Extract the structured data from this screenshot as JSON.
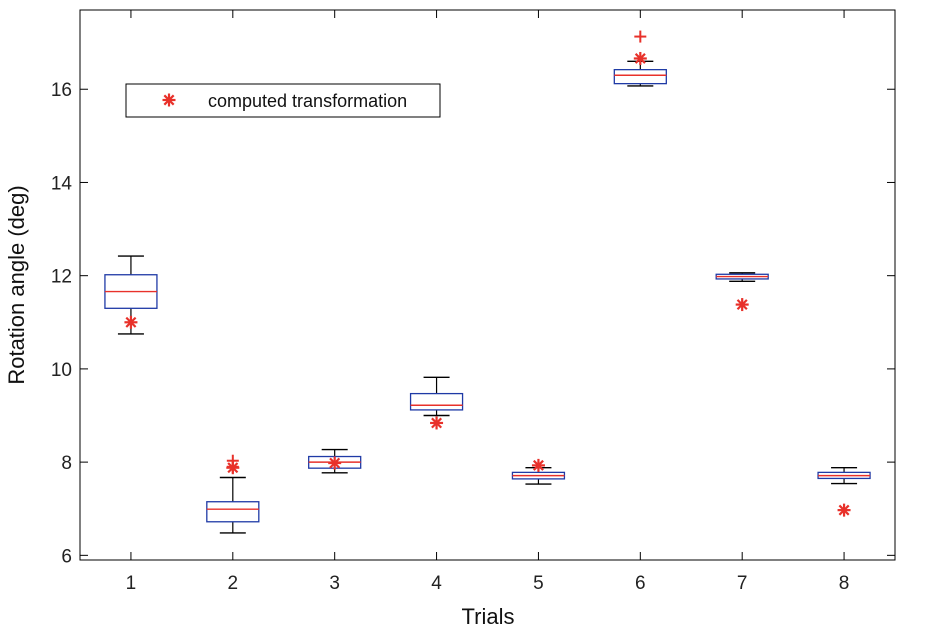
{
  "chart_data": {
    "type": "boxplot",
    "xlabel": "Trials",
    "ylabel": "Rotation angle (deg)",
    "categories": [
      "1",
      "2",
      "3",
      "4",
      "5",
      "6",
      "7",
      "8"
    ],
    "xlim": [
      0.5,
      8.5
    ],
    "ylim": [
      5.9,
      17.7
    ],
    "yticks": [
      6,
      8,
      10,
      12,
      14,
      16
    ],
    "yticklabels": [
      "6",
      "8",
      "10",
      "12",
      "14",
      "16"
    ],
    "grid": false,
    "legend": {
      "placement": "top-left",
      "entries": [
        "computed transformation"
      ]
    },
    "colors": {
      "box": "#1f3aa6",
      "median": "#e8312a",
      "whisker": "#000000",
      "outlier": "#e8312a",
      "marker": "#e8312a",
      "frame": "#000000"
    },
    "boxes": [
      {
        "trial": 1,
        "whisker_low": 10.75,
        "q1": 11.3,
        "median": 11.66,
        "q3": 12.02,
        "whisker_high": 12.42,
        "outliers": []
      },
      {
        "trial": 2,
        "whisker_low": 6.48,
        "q1": 6.72,
        "median": 6.99,
        "q3": 7.15,
        "whisker_high": 7.67,
        "outliers": [
          8.03,
          7.9
        ]
      },
      {
        "trial": 3,
        "whisker_low": 7.77,
        "q1": 7.87,
        "median": 8.0,
        "q3": 8.12,
        "whisker_high": 8.27,
        "outliers": []
      },
      {
        "trial": 4,
        "whisker_low": 9.0,
        "q1": 9.12,
        "median": 9.22,
        "q3": 9.47,
        "whisker_high": 9.82,
        "outliers": []
      },
      {
        "trial": 5,
        "whisker_low": 7.53,
        "q1": 7.64,
        "median": 7.71,
        "q3": 7.78,
        "whisker_high": 7.88,
        "outliers": []
      },
      {
        "trial": 6,
        "whisker_low": 16.07,
        "q1": 16.12,
        "median": 16.3,
        "q3": 16.42,
        "whisker_high": 16.6,
        "outliers": [
          17.13
        ]
      },
      {
        "trial": 7,
        "whisker_low": 11.88,
        "q1": 11.93,
        "median": 11.98,
        "q3": 12.03,
        "whisker_high": 12.06,
        "outliers": []
      },
      {
        "trial": 8,
        "whisker_low": 7.54,
        "q1": 7.65,
        "median": 7.71,
        "q3": 7.78,
        "whisker_high": 7.88,
        "outliers": []
      }
    ],
    "computed_transformation": [
      {
        "trial": 1,
        "value": 11.0
      },
      {
        "trial": 2,
        "value": 7.88
      },
      {
        "trial": 3,
        "value": 7.98
      },
      {
        "trial": 4,
        "value": 8.84
      },
      {
        "trial": 5,
        "value": 7.93
      },
      {
        "trial": 6,
        "value": 16.66
      },
      {
        "trial": 7,
        "value": 11.38
      },
      {
        "trial": 8,
        "value": 6.97
      }
    ]
  }
}
